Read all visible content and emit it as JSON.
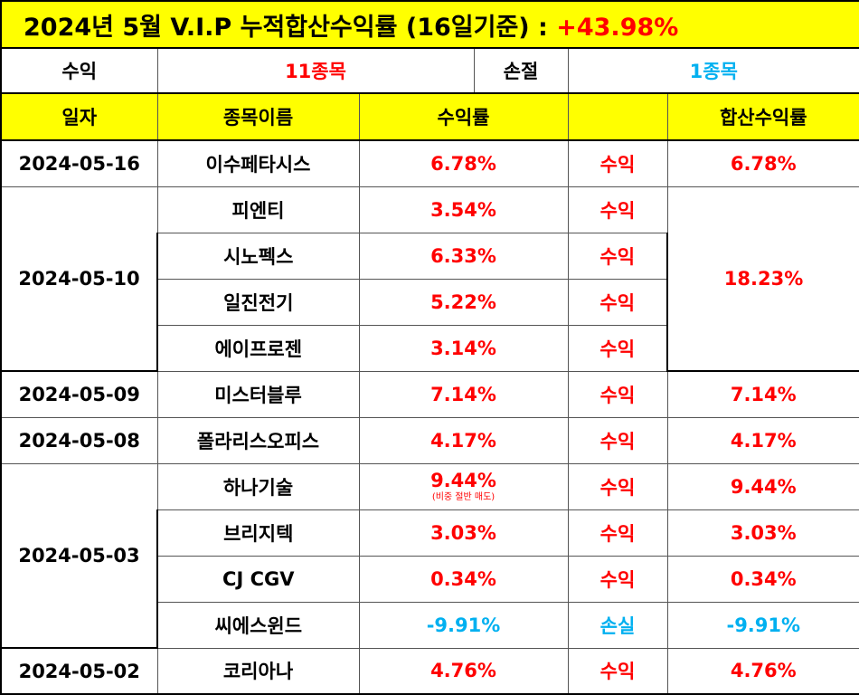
{
  "title": {
    "prefix": "2024년 5월 V.I.P 누적합산수익률 (16일기준) : ",
    "total_rate": "+43.98%"
  },
  "summary": {
    "profit_label": "수익",
    "profit_count": "11종목",
    "loss_label": "손절",
    "loss_count": "1종목"
  },
  "headers": {
    "date": "일자",
    "name": "종목이름",
    "rate": "수익률",
    "result": "",
    "cumulative": "합산수익률"
  },
  "rows": [
    {
      "date": "2024-05-16",
      "name": "이수페타시스",
      "rate": "6.78%",
      "result": "수익",
      "cumulative": "6.78%"
    },
    {
      "date": "2024-05-10",
      "name": "피엔티",
      "rate": "3.54%",
      "result": "수익",
      "cumulative": "18.23%"
    },
    {
      "name": "시노펙스",
      "rate": "6.33%",
      "result": "수익"
    },
    {
      "name": "일진전기",
      "rate": "5.22%",
      "result": "수익"
    },
    {
      "name": "에이프로젠",
      "rate": "3.14%",
      "result": "수익"
    },
    {
      "date": "2024-05-09",
      "name": "미스터블루",
      "rate": "7.14%",
      "result": "수익",
      "cumulative": "7.14%"
    },
    {
      "date": "2024-05-08",
      "name": "폴라리스오피스",
      "rate": "4.17%",
      "result": "수익",
      "cumulative": "4.17%"
    },
    {
      "date": "2024-05-03",
      "name": "하나기술",
      "rate": "9.44%",
      "note": "(비중 절반 매도)",
      "result": "수익",
      "cumulative": "9.44%"
    },
    {
      "name": "브리지텍",
      "rate": "3.03%",
      "result": "수익",
      "cumulative": "3.03%"
    },
    {
      "name": "CJ CGV",
      "rate": "0.34%",
      "result": "수익",
      "cumulative": "0.34%"
    },
    {
      "name": "씨에스윈드",
      "rate": "-9.91%",
      "result": "손실",
      "cumulative": "-9.91%"
    },
    {
      "date": "2024-05-02",
      "name": "코리아나",
      "rate": "4.76%",
      "result": "수익",
      "cumulative": "4.76%"
    }
  ],
  "colors": {
    "header_bg": "#ffff00",
    "profit": "#ff0000",
    "loss": "#00b0f0"
  }
}
